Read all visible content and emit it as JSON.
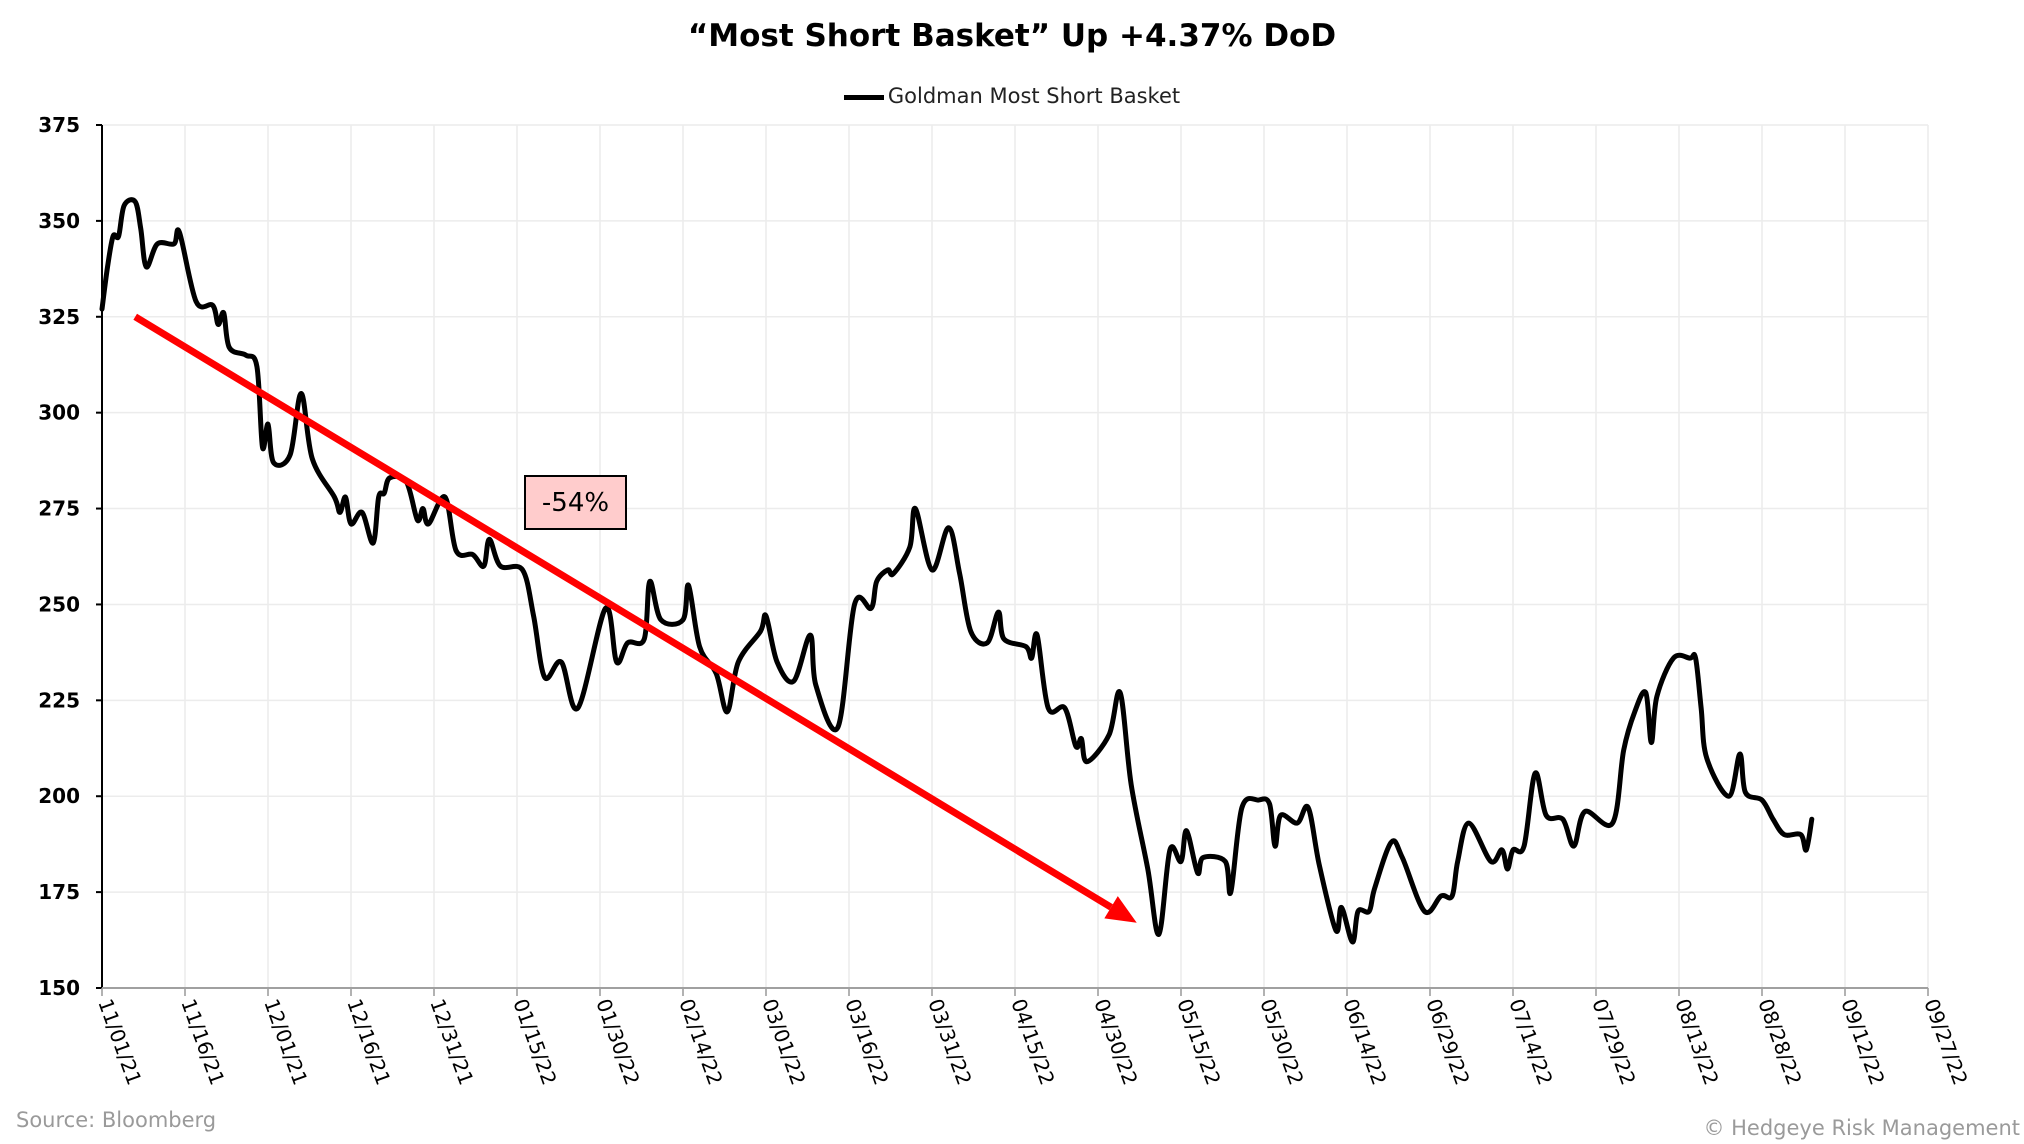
{
  "chart_data": {
    "type": "line",
    "title": "“Most Short Basket” Up +4.37% DoD",
    "xlabel": "",
    "ylabel": "",
    "ylim": [
      150,
      375
    ],
    "yticks": [
      "150",
      "175",
      "200",
      "225",
      "250",
      "275",
      "300",
      "325",
      "350",
      "375"
    ],
    "xlim": [
      "11/01/21",
      "09/27/22"
    ],
    "xticks": [
      "11/01/21",
      "11/16/21",
      "12/01/21",
      "12/16/21",
      "12/31/21",
      "01/15/22",
      "01/30/22",
      "02/14/22",
      "03/01/22",
      "03/16/22",
      "03/31/22",
      "04/15/22",
      "04/30/22",
      "05/15/22",
      "05/30/22",
      "06/14/22",
      "06/29/22",
      "07/14/22",
      "07/29/22",
      "08/13/22",
      "08/28/22",
      "09/12/22",
      "09/27/22"
    ],
    "grid": true,
    "legend_position": "top-center",
    "series": [
      {
        "name": "Goldman Most Short Basket",
        "color": "#000000",
        "x": [
          "11/01/21",
          "11/02/21",
          "11/03/21",
          "11/04/21",
          "11/05/21",
          "11/07/21",
          "11/08/21",
          "11/09/21",
          "11/11/21",
          "11/14/21",
          "11/15/21",
          "11/18/21",
          "11/21/21",
          "11/22/21",
          "11/23/21",
          "11/24/21",
          "11/27/21",
          "11/29/21",
          "11/30/21",
          "12/01/21",
          "12/02/21",
          "12/05/21",
          "12/07/21",
          "12/09/21",
          "12/13/21",
          "12/14/21",
          "12/15/21",
          "12/16/21",
          "12/18/21",
          "12/20/21",
          "12/21/21",
          "12/22/21",
          "12/23/21",
          "12/26/21",
          "12/28/21",
          "12/29/21",
          "12/30/21",
          "01/02/22",
          "01/04/22",
          "01/07/22",
          "01/09/22",
          "01/10/22",
          "01/12/22",
          "01/16/22",
          "01/18/22",
          "01/20/22",
          "01/23/22",
          "01/26/22",
          "01/31/22",
          "02/02/22",
          "02/04/22",
          "02/07/22",
          "02/08/22",
          "02/10/22",
          "02/14/22",
          "02/15/22",
          "02/17/22",
          "02/20/22",
          "02/22/22",
          "02/24/22",
          "02/28/22",
          "03/01/22",
          "03/03/22",
          "03/06/22",
          "03/09/22",
          "03/10/22",
          "03/14/22",
          "03/17/22",
          "03/20/22",
          "03/21/22",
          "03/23/22",
          "03/24/22",
          "03/27/22",
          "03/28/22",
          "03/31/22",
          "04/03/22",
          "04/05/22",
          "04/07/22",
          "04/10/22",
          "04/12/22",
          "04/13/22",
          "04/17/22",
          "04/18/22",
          "04/19/22",
          "04/21/22",
          "04/24/22",
          "04/26/22",
          "04/27/22",
          "04/28/22",
          "05/02/22",
          "05/04/22",
          "05/06/22",
          "05/09/22",
          "05/11/22",
          "05/13/22",
          "05/15/22",
          "05/16/22",
          "05/18/22",
          "05/19/22",
          "05/23/22",
          "05/24/22",
          "05/26/22",
          "05/29/22",
          "05/31/22",
          "06/01/22",
          "06/02/22",
          "06/05/22",
          "06/07/22",
          "06/09/22",
          "06/12/22",
          "06/13/22",
          "06/15/22",
          "06/16/22",
          "06/18/22",
          "06/19/22",
          "06/22/22",
          "06/24/22",
          "06/28/22",
          "07/01/22",
          "07/03/22",
          "07/04/22",
          "07/06/22",
          "07/10/22",
          "07/12/22",
          "07/13/22",
          "07/14/22",
          "07/16/22",
          "07/18/22",
          "07/20/22",
          "07/23/22",
          "07/25/22",
          "07/27/22",
          "08/01/22",
          "08/03/22",
          "08/05/22",
          "08/07/22",
          "08/08/22",
          "08/09/22",
          "08/12/22",
          "08/15/22",
          "08/16/22",
          "08/17/22",
          "08/18/22",
          "08/22/22",
          "08/24/22",
          "08/25/22",
          "08/28/22",
          "08/30/22",
          "09/01/22",
          "09/04/22",
          "09/05/22",
          "09/06/22"
        ],
        "values": [
          327,
          338,
          346,
          346,
          354,
          355,
          348,
          338,
          344,
          344,
          347,
          329,
          328,
          323,
          326,
          317,
          315,
          312,
          291,
          297,
          287,
          289,
          305,
          288,
          278,
          274,
          278,
          271,
          274,
          266,
          278,
          279,
          283,
          282,
          272,
          275,
          271,
          278,
          264,
          263,
          260,
          267,
          260,
          259,
          247,
          231,
          235,
          223,
          249,
          235,
          240,
          241,
          256,
          246,
          246,
          255,
          239,
          232,
          222,
          235,
          243,
          247,
          235,
          230,
          242,
          229,
          218,
          250,
          249,
          256,
          259,
          258,
          265,
          275,
          259,
          270,
          258,
          243,
          240,
          248,
          241,
          239,
          236,
          242,
          223,
          223,
          213,
          215,
          209,
          216,
          227,
          203,
          181,
          164,
          186,
          183,
          191,
          180,
          184,
          183,
          175,
          197,
          199,
          198,
          187,
          195,
          193,
          197,
          182,
          165,
          171,
          162,
          170,
          170,
          176,
          188,
          184,
          170,
          174,
          174,
          183,
          193,
          183,
          186,
          181,
          186,
          187,
          206,
          195,
          194,
          187,
          196,
          193,
          212,
          222,
          227,
          214,
          226,
          236,
          236,
          236,
          223,
          210,
          200,
          211,
          201,
          199,
          194,
          190,
          190,
          186,
          194
        ]
      }
    ],
    "annotations": [
      {
        "type": "arrow",
        "color": "#ff0000",
        "from": {
          "x": "11/07/21",
          "y": 325
        },
        "to": {
          "x": "05/07/22",
          "y": 167
        }
      },
      {
        "type": "label",
        "text": "-54%",
        "background": "#ffcccc"
      }
    ]
  },
  "footer": {
    "source": "Source: Bloomberg",
    "copyright": "© Hedgeye Risk Management"
  }
}
